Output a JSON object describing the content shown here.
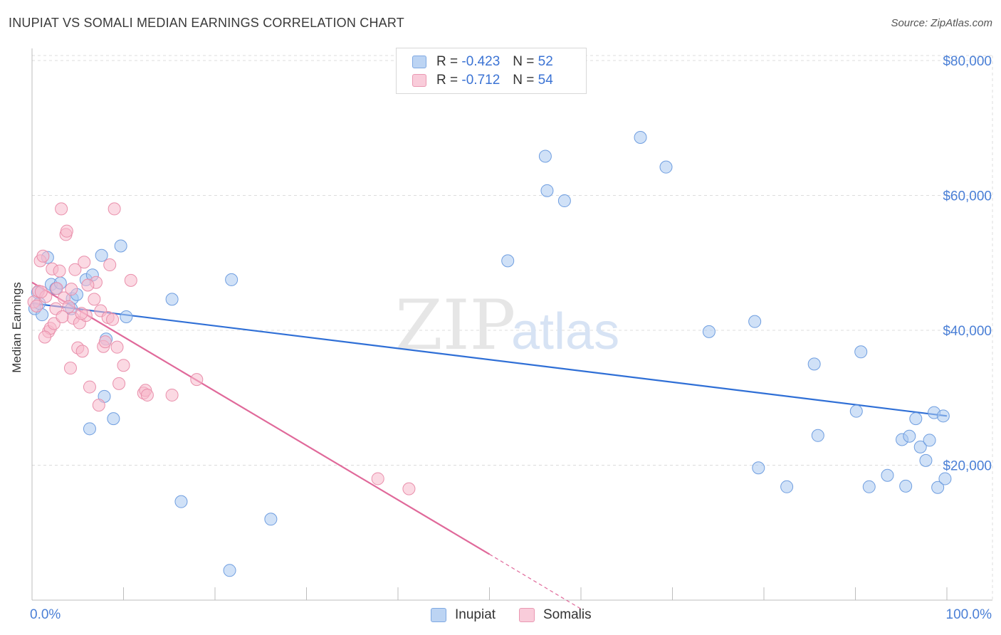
{
  "header": {
    "title": "INUPIAT VS SOMALI MEDIAN EARNINGS CORRELATION CHART",
    "source": "Source: ZipAtlas.com"
  },
  "watermark": {
    "zip": "ZIP",
    "atlas": "atlas"
  },
  "legend": {
    "rows": [
      {
        "r_label": "R =",
        "r_value": "-0.423",
        "n_label": "N =",
        "n_value": "52",
        "color": "#a9c8f0"
      },
      {
        "r_label": "R =",
        "r_value": "-0.712",
        "n_label": "N =",
        "n_value": "54",
        "color": "#f7b9cc"
      }
    ]
  },
  "bottom_legend": {
    "inupiat": "Inupiat",
    "somalis": "Somalis"
  },
  "colors": {
    "inupiat_fill": "#a9c8f0",
    "inupiat_stroke": "#6f9ee0",
    "inupiat_line": "#2f6fd6",
    "somali_fill": "#f7b9cc",
    "somali_stroke": "#e98fab",
    "somali_line": "#e0699a",
    "tick_text": "#4a7fd6",
    "grid": "#dcdcdc"
  },
  "chart_data": {
    "type": "scatter",
    "title": "INUPIAT VS SOMALI MEDIAN EARNINGS CORRELATION CHART",
    "xlabel": "",
    "ylabel": "Median Earnings",
    "xlim": [
      0,
      100
    ],
    "ylim": [
      0,
      82000
    ],
    "x_tick_labels": [
      "0.0%",
      "100.0%"
    ],
    "y_ticks": [
      20000,
      40000,
      60000,
      80000
    ],
    "y_tick_labels": [
      "$20,000",
      "$40,000",
      "$60,000",
      "$80,000"
    ],
    "grid": true,
    "series": [
      {
        "name": "Inupiat",
        "points": [
          [
            0.3,
            43200
          ],
          [
            0.6,
            45600
          ],
          [
            1.1,
            42300
          ],
          [
            1.7,
            50800
          ],
          [
            2.1,
            46800
          ],
          [
            2.6,
            46200
          ],
          [
            3.1,
            47000
          ],
          [
            4.4,
            44700
          ],
          [
            4.9,
            45300
          ],
          [
            4.3,
            43200
          ],
          [
            6.3,
            25400
          ],
          [
            5.9,
            47500
          ],
          [
            6.6,
            48200
          ],
          [
            7.6,
            51100
          ],
          [
            7.9,
            30200
          ],
          [
            8.1,
            38700
          ],
          [
            8.9,
            26900
          ],
          [
            9.7,
            52500
          ],
          [
            10.3,
            42000
          ],
          [
            15.3,
            44600
          ],
          [
            16.3,
            14600
          ],
          [
            21.6,
            4400
          ],
          [
            21.8,
            47500
          ],
          [
            26.1,
            12000
          ],
          [
            52.0,
            50300
          ],
          [
            56.1,
            65800
          ],
          [
            56.3,
            60700
          ],
          [
            58.2,
            59200
          ],
          [
            66.5,
            68600
          ],
          [
            69.3,
            64200
          ],
          [
            74.0,
            39800
          ],
          [
            79.0,
            41300
          ],
          [
            79.4,
            19600
          ],
          [
            82.5,
            16800
          ],
          [
            85.5,
            35000
          ],
          [
            85.9,
            24400
          ],
          [
            90.1,
            28000
          ],
          [
            90.6,
            36800
          ],
          [
            91.5,
            16800
          ],
          [
            93.5,
            18500
          ],
          [
            95.1,
            23800
          ],
          [
            95.5,
            16900
          ],
          [
            95.9,
            24300
          ],
          [
            96.6,
            26900
          ],
          [
            97.1,
            22700
          ],
          [
            98.1,
            23700
          ],
          [
            98.6,
            27800
          ],
          [
            99.0,
            16700
          ],
          [
            97.7,
            20700
          ],
          [
            99.8,
            18000
          ],
          [
            99.6,
            27300
          ],
          [
            0.8,
            44000
          ]
        ]
      },
      {
        "name": "Somalis",
        "points": [
          [
            0.2,
            44200
          ],
          [
            0.5,
            43600
          ],
          [
            0.7,
            45800
          ],
          [
            0.9,
            50300
          ],
          [
            1.2,
            51000
          ],
          [
            1.5,
            45000
          ],
          [
            1.8,
            39800
          ],
          [
            2.0,
            40300
          ],
          [
            2.2,
            49100
          ],
          [
            2.4,
            41000
          ],
          [
            2.7,
            46200
          ],
          [
            3.0,
            48800
          ],
          [
            3.2,
            58000
          ],
          [
            3.5,
            44800
          ],
          [
            3.7,
            54200
          ],
          [
            3.8,
            54700
          ],
          [
            4.0,
            43500
          ],
          [
            4.2,
            34400
          ],
          [
            4.3,
            46100
          ],
          [
            4.5,
            41800
          ],
          [
            4.7,
            49000
          ],
          [
            5.0,
            37400
          ],
          [
            5.2,
            41100
          ],
          [
            5.5,
            36900
          ],
          [
            5.7,
            50100
          ],
          [
            5.9,
            42200
          ],
          [
            6.3,
            31600
          ],
          [
            7.0,
            47100
          ],
          [
            7.3,
            28900
          ],
          [
            7.5,
            42900
          ],
          [
            7.8,
            37600
          ],
          [
            8.0,
            38300
          ],
          [
            8.3,
            41900
          ],
          [
            8.5,
            49700
          ],
          [
            8.8,
            41600
          ],
          [
            9.0,
            58000
          ],
          [
            9.3,
            37500
          ],
          [
            9.5,
            32100
          ],
          [
            10.0,
            34800
          ],
          [
            10.8,
            47400
          ],
          [
            12.2,
            30700
          ],
          [
            12.4,
            31100
          ],
          [
            12.6,
            30400
          ],
          [
            15.3,
            30400
          ],
          [
            18.0,
            32700
          ],
          [
            37.8,
            18000
          ],
          [
            41.2,
            16500
          ],
          [
            1.0,
            45700
          ],
          [
            2.6,
            43200
          ],
          [
            6.8,
            44600
          ],
          [
            3.3,
            42000
          ],
          [
            5.4,
            42500
          ],
          [
            1.4,
            39000
          ],
          [
            6.1,
            46700
          ]
        ]
      }
    ],
    "trend_lines": [
      {
        "series": "Inupiat",
        "x": [
          0,
          100
        ],
        "y": [
          44000,
          27300
        ]
      },
      {
        "series": "Somalis",
        "x": [
          0,
          50
        ],
        "y": [
          47100,
          6800
        ],
        "dashed_to": [
          60,
          -1300
        ]
      }
    ]
  }
}
